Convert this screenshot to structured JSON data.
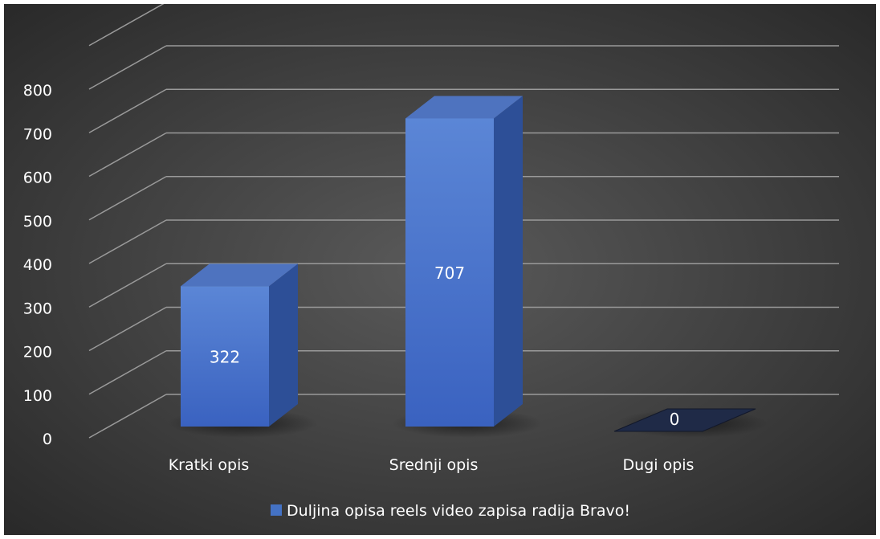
{
  "chart_data": {
    "type": "bar",
    "title": "",
    "xlabel": "",
    "ylabel": "",
    "categories": [
      "Kratki opis",
      "Srednji opis",
      "Dugi opis"
    ],
    "series": [
      {
        "name": "Duljina opisa reels video zapisa radija Bravo!",
        "values": [
          322,
          707,
          0
        ],
        "data_labels": [
          "322",
          "707",
          "0"
        ],
        "color": "#4472C4"
      }
    ],
    "ylim": [
      0,
      800
    ],
    "yticks": [
      "0",
      "100",
      "200",
      "300",
      "400",
      "500",
      "600",
      "700",
      "800"
    ],
    "grid": true,
    "style": "3d-column",
    "legend_position": "bottom",
    "background": "dark-radial-gray"
  }
}
